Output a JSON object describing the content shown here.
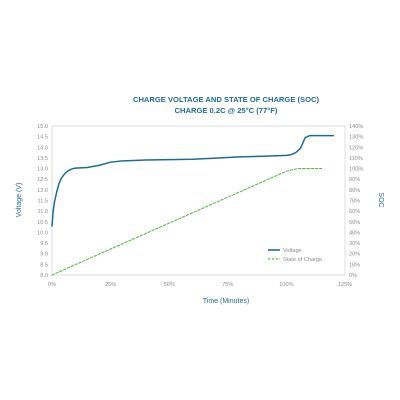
{
  "chart_data": {
    "type": "line",
    "title": "CHARGE VOLTAGE AND STATE OF CHARGE (SOC)",
    "subtitle": "CHARGE 0.2C @ 25°C (77°F)",
    "xlabel": "Time (Minutes)",
    "ylabel": "Voltage (V)",
    "y2label": "SOC",
    "x_ticks": [
      "0%",
      "25%",
      "50%",
      "75%",
      "100%",
      "125%"
    ],
    "xlim": [
      0,
      125
    ],
    "y_ticks": [
      "8.0",
      "8.5",
      "9.0",
      "9.5",
      "10.0",
      "10.5",
      "11.0",
      "11.5",
      "12.0",
      "12.5",
      "13.0",
      "13.5",
      "14.0",
      "14.5",
      "15.0"
    ],
    "ylim": [
      8.0,
      15.0
    ],
    "y2_ticks": [
      "0%",
      "10%",
      "20%",
      "30%",
      "40%",
      "50%",
      "60%",
      "70%",
      "80%",
      "90%",
      "100%",
      "110%",
      "120%",
      "130%",
      "140%"
    ],
    "y2lim": [
      0,
      140
    ],
    "grid": false,
    "legend_position": "right",
    "series": [
      {
        "name": "Voltage",
        "axis": "left",
        "color": "#1f6b8f",
        "x": [
          0,
          0.5,
          1,
          2,
          3,
          4,
          5,
          6,
          7,
          8,
          9,
          10,
          12,
          15,
          20,
          25,
          30,
          40,
          50,
          60,
          70,
          80,
          90,
          100,
          102,
          104,
          105,
          106,
          108,
          110,
          112,
          115,
          120
        ],
        "y": [
          10.3,
          11.0,
          11.4,
          11.9,
          12.3,
          12.55,
          12.7,
          12.82,
          12.9,
          12.96,
          13.0,
          13.02,
          13.03,
          13.05,
          13.15,
          13.3,
          13.36,
          13.4,
          13.42,
          13.44,
          13.49,
          13.55,
          13.58,
          13.62,
          13.65,
          13.75,
          13.85,
          13.95,
          14.45,
          14.55,
          14.55,
          14.55,
          14.55
        ]
      },
      {
        "name": "State of Charge",
        "axis": "right",
        "color": "#5bb846",
        "x": [
          0,
          10,
          20,
          30,
          40,
          50,
          60,
          70,
          80,
          90,
          100,
          105,
          110,
          115
        ],
        "y": [
          0,
          9.8,
          19.5,
          29.3,
          39.0,
          48.8,
          58.5,
          68.3,
          78.0,
          87.8,
          97.5,
          100,
          100,
          100
        ]
      }
    ]
  }
}
